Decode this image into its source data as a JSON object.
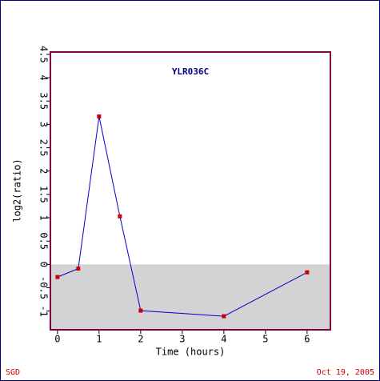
{
  "chart_data": {
    "type": "line",
    "title": "YLR036C",
    "x_label": "Time (hours)",
    "y_label": "log2(ratio)",
    "x": [
      0,
      0.5,
      1,
      1.5,
      2,
      4,
      6
    ],
    "series": [
      {
        "name": "YLR036C",
        "color": "#0000cc",
        "marker_color": "#cc0000",
        "values": [
          -0.27,
          -0.09,
          3.17,
          1.03,
          -0.99,
          -1.11,
          -0.17
        ]
      }
    ],
    "xlim": [
      -0.17,
      6.56
    ],
    "xticks": [
      0,
      1,
      2,
      3,
      4,
      5,
      6
    ],
    "ylim": [
      -1.4,
      4.55
    ],
    "yticks": [
      -1,
      -0.5,
      0,
      0.5,
      1,
      1.5,
      2,
      2.5,
      3,
      3.5,
      4,
      4.5
    ],
    "shade_color": "#d3d3d3",
    "source": "SGD",
    "date": "Oct 19, 2005"
  }
}
